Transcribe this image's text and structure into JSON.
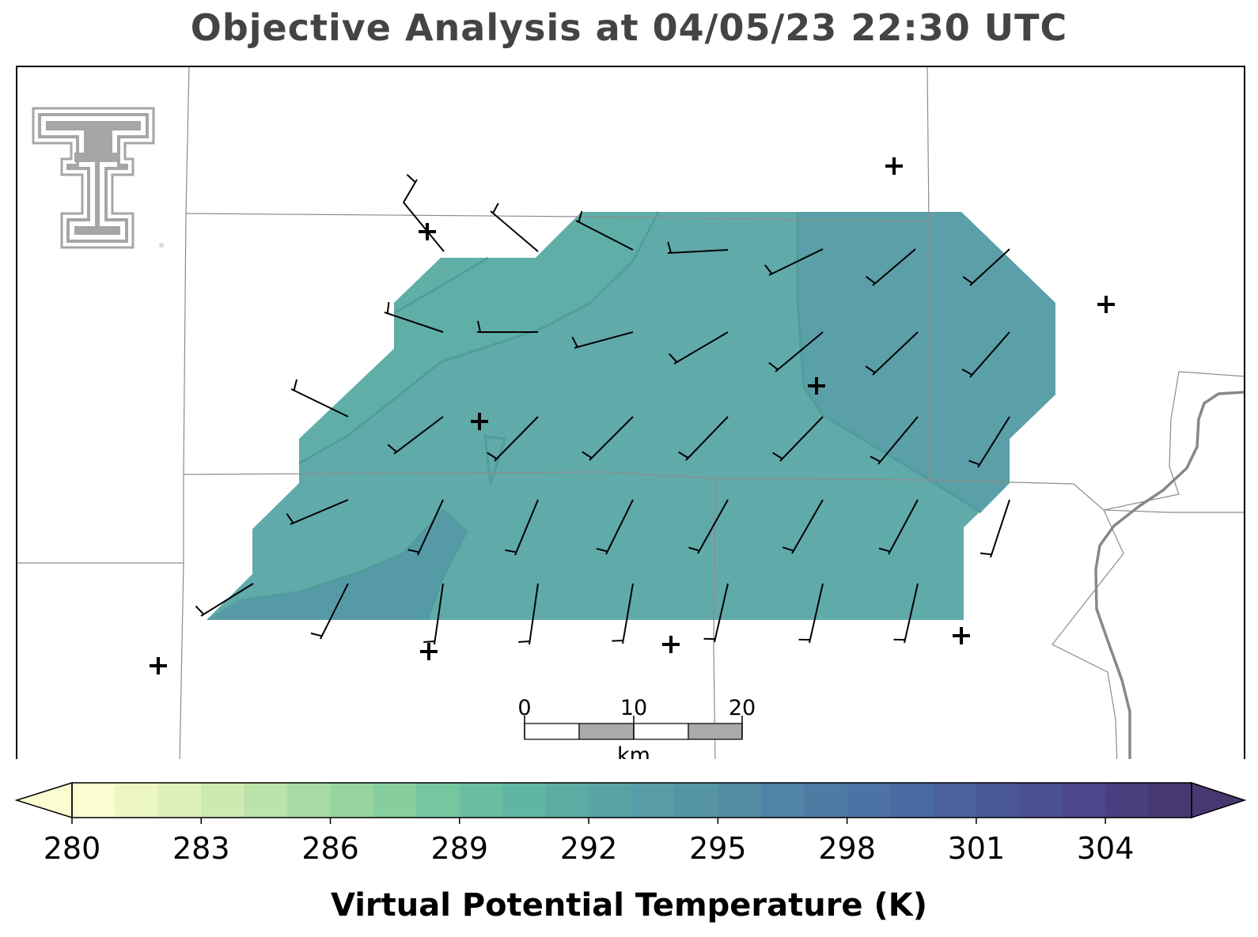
{
  "title": "Objective Analysis at 04/05/23 22:30 UTC",
  "colorbar": {
    "label": "Virtual Potential Temperature (K)",
    "min": 280,
    "max": 306,
    "step": 1,
    "ticks": [
      "280",
      "283",
      "286",
      "289",
      "292",
      "295",
      "298",
      "301",
      "304"
    ],
    "extend": "both",
    "colormap": "crest (pale yellow to dark indigo)",
    "stops": [
      "#fbfcd0",
      "#e6f3c0",
      "#cdeab2",
      "#b4e0a7",
      "#99d69f",
      "#80cc9e",
      "#6ac0a0",
      "#5fb3a3",
      "#5aa5a5",
      "#579aa6",
      "#538ea5",
      "#5082a5",
      "#4c76a4",
      "#4a69a1",
      "#4a5c9c",
      "#4b4f94",
      "#4b4284",
      "#483872"
    ]
  },
  "scale_bar": {
    "tick_labels": [
      "0",
      "10",
      "20"
    ],
    "unit": "km"
  },
  "logo": {
    "name": "texas-tech-double-t-logo",
    "color": "#a6a6a6"
  },
  "field_note": "analysis field ≈ 291–294 K across domain",
  "wind_barbs_note": "10-kt barbs, mostly SW flow; short half-barb flags"
}
